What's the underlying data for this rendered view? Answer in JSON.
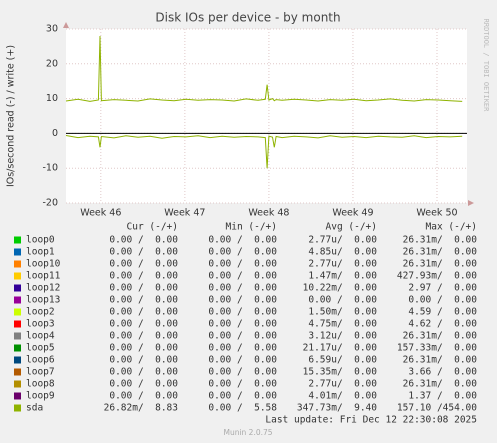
{
  "chart_data": {
    "type": "line",
    "title": "Disk IOs per device - by month",
    "y_label": "IOs/second read (-) / write (+)",
    "side_label": "RRDTOOL / TOBI OETIKER",
    "footer": "Munin 2.0.75",
    "last_update": "Last update: Fri Dec 12 22:30:08 2025",
    "ylim": [
      -20,
      30
    ],
    "yticks": [
      -20,
      -10,
      0,
      10,
      20,
      30
    ],
    "xlim": [
      0,
      33.4
    ],
    "xticks": [
      {
        "value": 2.9,
        "label": "Week 46"
      },
      {
        "value": 9.9,
        "label": "Week 47"
      },
      {
        "value": 16.9,
        "label": "Week 48"
      },
      {
        "value": 23.9,
        "label": "Week 49"
      },
      {
        "value": 30.9,
        "label": "Week 50"
      }
    ],
    "grid": true,
    "legend_columns": [
      "Cur (-/+)",
      "Min (-/+)",
      "Avg (-/+)",
      "Max (-/+)"
    ],
    "x": [
      0,
      1,
      2,
      2.7,
      2.83,
      2.95,
      4,
      5,
      6,
      7,
      8,
      9,
      10,
      11,
      12,
      13,
      14,
      15,
      16,
      16.6,
      16.75,
      16.9,
      17.2,
      17.35,
      17.5,
      18,
      19,
      20,
      21,
      22,
      23,
      24,
      25,
      26,
      27,
      28,
      29,
      30,
      31,
      32,
      33
    ],
    "series": [
      {
        "name": "loop0",
        "color": "#00cc00",
        "stats": [
          "0.00 /  0.00",
          "0.00 /  0.00",
          "2.77u/  0.00",
          "26.31m/  0.00"
        ]
      },
      {
        "name": "loop1",
        "color": "#0066b3",
        "stats": [
          "0.00 /  0.00",
          "0.00 /  0.00",
          "4.85u/  0.00",
          "26.31m/  0.00"
        ]
      },
      {
        "name": "loop10",
        "color": "#ff8000",
        "stats": [
          "0.00 /  0.00",
          "0.00 /  0.00",
          "2.77u/  0.00",
          "26.31m/  0.00"
        ]
      },
      {
        "name": "loop11",
        "color": "#ffcc00",
        "stats": [
          "0.00 /  0.00",
          "0.00 /  0.00",
          "1.47m/  0.00",
          "427.93m/  0.00"
        ]
      },
      {
        "name": "loop12",
        "color": "#330099",
        "stats": [
          "0.00 /  0.00",
          "0.00 /  0.00",
          "10.22m/  0.00",
          "2.97 /  0.00"
        ]
      },
      {
        "name": "loop13",
        "color": "#990099",
        "stats": [
          "0.00 /  0.00",
          "0.00 /  0.00",
          "0.00 /  0.00",
          "0.00 /  0.00"
        ]
      },
      {
        "name": "loop2",
        "color": "#ccff00",
        "stats": [
          "0.00 /  0.00",
          "0.00 /  0.00",
          "1.50m/  0.00",
          "4.59 /  0.00"
        ]
      },
      {
        "name": "loop3",
        "color": "#ff0000",
        "stats": [
          "0.00 /  0.00",
          "0.00 /  0.00",
          "4.75m/  0.00",
          "4.62 /  0.00"
        ]
      },
      {
        "name": "loop4",
        "color": "#808080",
        "stats": [
          "0.00 /  0.00",
          "0.00 /  0.00",
          "3.12u/  0.00",
          "26.31m/  0.00"
        ]
      },
      {
        "name": "loop5",
        "color": "#008f00",
        "stats": [
          "0.00 /  0.00",
          "0.00 /  0.00",
          "21.17u/  0.00",
          "157.33m/  0.00"
        ]
      },
      {
        "name": "loop6",
        "color": "#00487d",
        "stats": [
          "0.00 /  0.00",
          "0.00 /  0.00",
          "6.59u/  0.00",
          "26.31m/  0.00"
        ]
      },
      {
        "name": "loop7",
        "color": "#b35a00",
        "stats": [
          "0.00 /  0.00",
          "0.00 /  0.00",
          "15.35m/  0.00",
          "3.66 /  0.00"
        ]
      },
      {
        "name": "loop8",
        "color": "#b38f00",
        "stats": [
          "0.00 /  0.00",
          "0.00 /  0.00",
          "2.77u/  0.00",
          "26.31m/  0.00"
        ]
      },
      {
        "name": "loop9",
        "color": "#6b006b",
        "stats": [
          "0.00 /  0.00",
          "0.00 /  0.00",
          "4.01m/  0.00",
          "1.37 /  0.00"
        ]
      },
      {
        "name": "sda",
        "color": "#8fb300",
        "stats": [
          "26.82m/  8.83",
          "0.00 /  5.58",
          "347.73m/  9.40",
          "157.10 /454.00"
        ],
        "values": [
          9.3,
          9.8,
          9.2,
          9.6,
          28,
          9.4,
          9.7,
          9.5,
          9.3,
          9.9,
          9.6,
          9.4,
          9.8,
          9.5,
          9.7,
          9.6,
          9.3,
          9.9,
          9.5,
          9.8,
          14,
          9.6,
          10,
          9.4,
          9.7,
          9.5,
          9.8,
          9.6,
          9.3,
          9.7,
          9.5,
          9.8,
          9.4,
          9.6,
          9.9,
          9.5,
          9.3,
          9.7,
          9.6,
          9.4,
          9.2
        ],
        "neg_values": [
          -0.6,
          -1.2,
          -0.8,
          -1.0,
          -4,
          -0.9,
          -1.3,
          -0.7,
          -1.1,
          -0.8,
          -1.4,
          -0.9,
          -1.0,
          -0.7,
          -1.2,
          -0.8,
          -1.1,
          -0.9,
          -1.0,
          -1.2,
          -10,
          -0.8,
          -1.1,
          -4,
          -0.9,
          -1.2,
          -0.8,
          -1.0,
          -1.3,
          -0.7,
          -1.1,
          -0.9,
          -1.2,
          -0.8,
          -1.0,
          -1.1,
          -0.7,
          -1.2,
          -0.9,
          -1.0,
          -0.8
        ]
      }
    ]
  }
}
